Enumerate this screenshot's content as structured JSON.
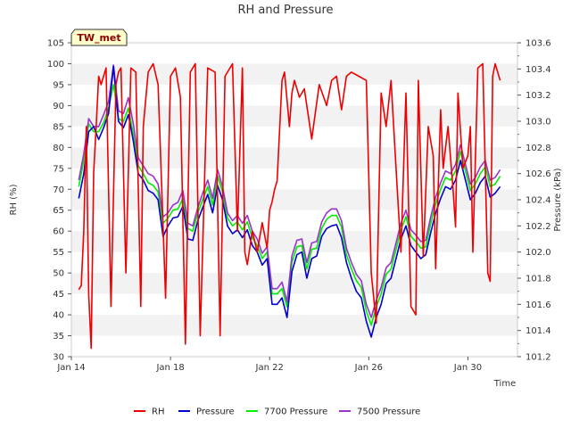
{
  "chart_data": {
    "type": "line",
    "title": "RH and Pressure",
    "badge": "TW_met",
    "xlabel": "Time",
    "ylabel_left": "RH (%)",
    "ylabel_right": "Pressure (kPa)",
    "x_tick_labels": [
      "Jan 14",
      "Jan 18",
      "Jan 22",
      "Jan 26",
      "Jan 30"
    ],
    "x_ticks_day": [
      14,
      18,
      22,
      26,
      30
    ],
    "xlim_day": [
      14,
      32
    ],
    "ylim_left": [
      30,
      105
    ],
    "ylim_right": [
      101.2,
      103.6
    ],
    "left_ticks": [
      30,
      35,
      40,
      45,
      50,
      55,
      60,
      65,
      70,
      75,
      80,
      85,
      90,
      95,
      100,
      105
    ],
    "right_ticks": [
      101.2,
      101.4,
      101.6,
      101.8,
      102.0,
      102.2,
      102.4,
      102.6,
      102.8,
      103.0,
      103.2,
      103.4,
      103.6
    ],
    "grid": "horizontal-bands",
    "legend_position": "bottom",
    "colors": {
      "rh": "#ee0000",
      "pressure": "#0000cc",
      "p7700": "#00ee00",
      "p7500": "#9933cc"
    },
    "series": [
      {
        "name": "RH",
        "axis": "left",
        "x": [
          14.3,
          14.4,
          14.5,
          14.6,
          14.7,
          14.8,
          14.9,
          15.0,
          15.1,
          15.2,
          15.4,
          15.6,
          15.8,
          15.9,
          16.0,
          16.2,
          16.4,
          16.6,
          16.8,
          16.9,
          17.1,
          17.3,
          17.5,
          17.8,
          18.0,
          18.2,
          18.4,
          18.6,
          18.8,
          18.9,
          19.0,
          19.2,
          19.5,
          19.8,
          20.0,
          20.2,
          20.5,
          20.7,
          20.9,
          21.0,
          21.1,
          21.3,
          21.5,
          21.7,
          21.9,
          22.0,
          22.1,
          22.2,
          22.3,
          22.5,
          22.6,
          22.8,
          22.9,
          23.0,
          23.2,
          23.4,
          23.7,
          24.0,
          24.3,
          24.5,
          24.7,
          24.9,
          25.1,
          25.3,
          25.6,
          25.9,
          26.1,
          26.3,
          26.5,
          26.7,
          26.9,
          27.1,
          27.3,
          27.5,
          27.7,
          27.9,
          28.0,
          28.2,
          28.4,
          28.6,
          28.7,
          28.9,
          29.0,
          29.2,
          29.4,
          29.5,
          29.6,
          29.8,
          30.0,
          30.1,
          30.2,
          30.4,
          30.6,
          30.8,
          30.9,
          31.0,
          31.1,
          31.3
        ],
        "values": [
          46,
          47,
          60,
          85,
          45,
          32,
          74,
          85,
          97,
          95,
          99,
          42,
          95,
          98,
          99,
          50,
          99,
          98,
          42,
          85,
          98,
          100,
          95,
          44,
          97,
          99,
          92,
          33,
          98,
          99,
          100,
          35,
          99,
          98,
          35,
          97,
          100,
          60,
          99,
          55,
          52,
          60,
          55,
          62,
          56,
          65,
          67,
          70,
          72,
          96,
          98,
          85,
          93,
          96,
          92,
          94,
          82,
          95,
          90,
          96,
          97,
          89,
          97,
          98,
          97,
          96,
          50,
          38,
          93,
          85,
          96,
          75,
          55,
          93,
          42,
          40,
          96,
          54,
          85,
          78,
          51,
          89,
          75,
          85,
          70,
          61,
          93,
          75,
          78,
          85,
          55,
          99,
          100,
          50,
          48,
          97,
          100,
          96
        ]
      },
      {
        "name": "Pressure",
        "axis": "right",
        "x": [
          14.3,
          14.5,
          14.7,
          14.9,
          15.1,
          15.3,
          15.5,
          15.7,
          15.9,
          16.1,
          16.3,
          16.5,
          16.7,
          16.9,
          17.1,
          17.3,
          17.5,
          17.7,
          17.9,
          18.1,
          18.3,
          18.5,
          18.7,
          18.9,
          19.1,
          19.3,
          19.5,
          19.7,
          19.9,
          20.1,
          20.3,
          20.5,
          20.7,
          20.9,
          21.1,
          21.3,
          21.5,
          21.7,
          21.9,
          22.1,
          22.3,
          22.5,
          22.7,
          22.9,
          23.1,
          23.3,
          23.5,
          23.7,
          23.9,
          24.1,
          24.3,
          24.5,
          24.7,
          24.9,
          25.1,
          25.3,
          25.5,
          25.7,
          25.9,
          26.1,
          26.3,
          26.5,
          26.7,
          26.9,
          27.1,
          27.3,
          27.5,
          27.7,
          27.9,
          28.1,
          28.3,
          28.5,
          28.7,
          28.9,
          29.1,
          29.3,
          29.5,
          29.7,
          29.9,
          30.1,
          30.3,
          30.5,
          30.7,
          30.9,
          31.1,
          31.3
        ],
        "values": [
          102.41,
          102.6,
          102.92,
          102.96,
          102.86,
          102.95,
          103.06,
          103.42,
          103.0,
          102.95,
          103.05,
          102.85,
          102.6,
          102.55,
          102.47,
          102.45,
          102.4,
          102.12,
          102.2,
          102.26,
          102.27,
          102.35,
          102.1,
          102.09,
          102.24,
          102.34,
          102.44,
          102.3,
          102.51,
          102.4,
          102.2,
          102.14,
          102.17,
          102.11,
          102.17,
          102.05,
          102.0,
          101.9,
          101.95,
          101.6,
          101.6,
          101.65,
          101.5,
          101.85,
          101.98,
          102.0,
          101.8,
          101.95,
          101.97,
          102.12,
          102.18,
          102.2,
          102.21,
          102.11,
          101.92,
          101.8,
          101.7,
          101.65,
          101.47,
          101.35,
          101.5,
          101.6,
          101.76,
          101.8,
          101.95,
          102.1,
          102.2,
          102.05,
          102.0,
          101.95,
          101.98,
          102.15,
          102.3,
          102.41,
          102.5,
          102.48,
          102.55,
          102.7,
          102.55,
          102.4,
          102.45,
          102.53,
          102.58,
          102.42,
          102.45,
          102.5
        ]
      },
      {
        "name": "7700 Pressure",
        "axis": "right",
        "x": [
          14.3,
          14.5,
          14.7,
          14.9,
          15.1,
          15.3,
          15.5,
          15.7,
          15.9,
          16.1,
          16.3,
          16.5,
          16.7,
          16.9,
          17.1,
          17.3,
          17.5,
          17.7,
          17.9,
          18.1,
          18.3,
          18.5,
          18.7,
          18.9,
          19.1,
          19.3,
          19.5,
          19.7,
          19.9,
          20.1,
          20.3,
          20.5,
          20.7,
          20.9,
          21.1,
          21.3,
          21.5,
          21.7,
          21.9,
          22.1,
          22.3,
          22.5,
          22.7,
          22.9,
          23.1,
          23.3,
          23.5,
          23.7,
          23.9,
          24.1,
          24.3,
          24.5,
          24.7,
          24.9,
          25.1,
          25.3,
          25.5,
          25.7,
          25.9,
          26.1,
          26.3,
          26.5,
          26.7,
          26.9,
          27.1,
          27.3,
          27.5,
          27.7,
          27.9,
          28.1,
          28.3,
          28.5,
          28.7,
          28.9,
          29.1,
          29.3,
          29.5,
          29.7,
          29.9,
          30.1,
          30.3,
          30.5,
          30.7,
          30.9,
          31.1,
          31.3
        ],
        "values": [
          102.5,
          102.7,
          102.98,
          102.92,
          102.92,
          102.99,
          103.1,
          103.28,
          103.02,
          103.0,
          103.1,
          102.9,
          102.66,
          102.6,
          102.53,
          102.51,
          102.46,
          102.22,
          102.26,
          102.32,
          102.33,
          102.41,
          102.18,
          102.16,
          102.3,
          102.4,
          102.5,
          102.36,
          102.58,
          102.46,
          102.26,
          102.2,
          102.23,
          102.17,
          102.23,
          102.11,
          102.05,
          101.95,
          102.0,
          101.68,
          101.68,
          101.72,
          101.58,
          101.92,
          102.04,
          102.05,
          101.87,
          102.02,
          102.03,
          102.18,
          102.25,
          102.28,
          102.28,
          102.19,
          101.98,
          101.87,
          101.78,
          101.73,
          101.55,
          101.44,
          101.58,
          101.68,
          101.83,
          101.87,
          102.02,
          102.17,
          102.27,
          102.12,
          102.08,
          102.03,
          102.04,
          102.22,
          102.37,
          102.48,
          102.57,
          102.55,
          102.62,
          102.77,
          102.62,
          102.47,
          102.52,
          102.6,
          102.65,
          102.5,
          102.52,
          102.58
        ]
      },
      {
        "name": "7500 Pressure",
        "axis": "right",
        "x": [
          14.3,
          14.5,
          14.7,
          14.9,
          15.1,
          15.3,
          15.5,
          15.7,
          15.9,
          16.1,
          16.3,
          16.5,
          16.7,
          16.9,
          17.1,
          17.3,
          17.5,
          17.7,
          17.9,
          18.1,
          18.3,
          18.5,
          18.7,
          18.9,
          19.1,
          19.3,
          19.5,
          19.7,
          19.9,
          20.1,
          20.3,
          20.5,
          20.7,
          20.9,
          21.1,
          21.3,
          21.5,
          21.7,
          21.9,
          22.1,
          22.3,
          22.5,
          22.7,
          22.9,
          23.1,
          23.3,
          23.5,
          23.7,
          23.9,
          24.1,
          24.3,
          24.5,
          24.7,
          24.9,
          25.1,
          25.3,
          25.5,
          25.7,
          25.9,
          26.1,
          26.3,
          26.5,
          26.7,
          26.9,
          27.1,
          27.3,
          27.5,
          27.7,
          27.9,
          28.1,
          28.3,
          28.5,
          28.7,
          28.9,
          29.1,
          29.3,
          29.5,
          29.7,
          29.9,
          30.1,
          30.3,
          30.5,
          30.7,
          30.9,
          31.1,
          31.3
        ],
        "values": [
          102.55,
          102.75,
          103.02,
          102.96,
          102.96,
          103.05,
          103.15,
          103.43,
          103.08,
          103.06,
          103.18,
          102.98,
          102.72,
          102.66,
          102.6,
          102.58,
          102.52,
          102.27,
          102.3,
          102.36,
          102.38,
          102.47,
          102.22,
          102.2,
          102.34,
          102.45,
          102.55,
          102.41,
          102.63,
          102.5,
          102.3,
          102.24,
          102.28,
          102.22,
          102.28,
          102.16,
          102.1,
          101.99,
          102.04,
          101.72,
          101.72,
          101.77,
          101.62,
          101.97,
          102.09,
          102.1,
          101.92,
          102.07,
          102.08,
          102.23,
          102.3,
          102.33,
          102.33,
          102.24,
          102.03,
          101.92,
          101.83,
          101.78,
          101.6,
          101.5,
          101.63,
          101.73,
          101.88,
          101.92,
          102.07,
          102.22,
          102.32,
          102.17,
          102.13,
          102.08,
          102.09,
          102.27,
          102.42,
          102.53,
          102.62,
          102.6,
          102.67,
          102.82,
          102.67,
          102.52,
          102.57,
          102.65,
          102.7,
          102.55,
          102.57,
          102.63
        ]
      }
    ]
  }
}
